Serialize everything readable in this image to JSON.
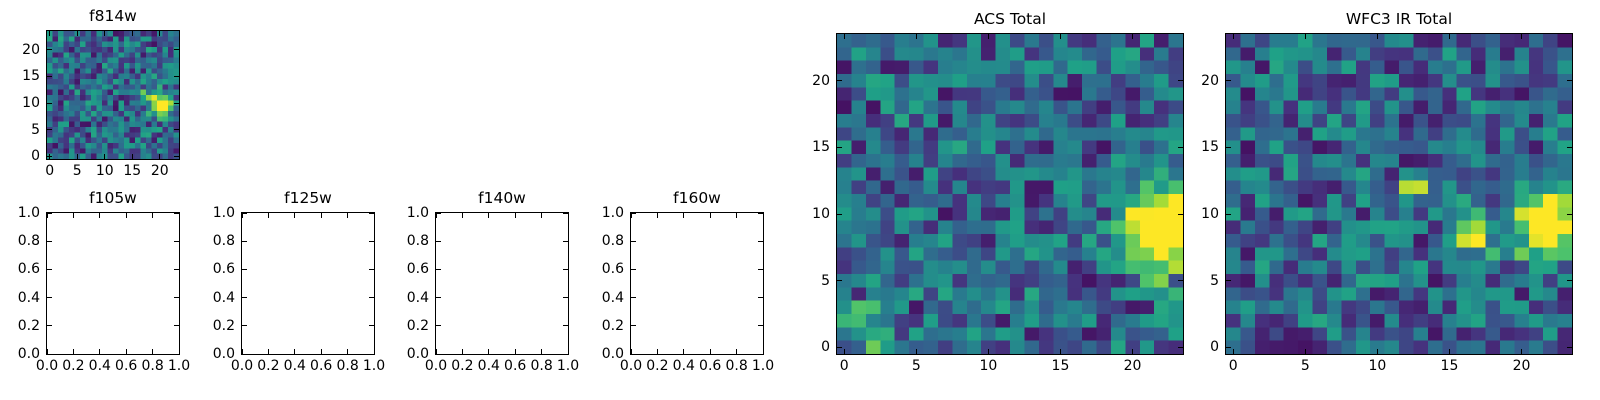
{
  "figure": {
    "background": "#ffffff",
    "text_color": "#000000",
    "description": "Grid of HST cutout stamps: one filled ACS stamp (f814w), four empty WFC3 filter stamps (f105w, f125w, f140w, f160w), and two large stacked stamps (ACS Total, WFC3 IR Total), all rendered with the viridis colormap."
  },
  "chart_data": [
    {
      "id": "f814w",
      "title": "f814w",
      "type": "heatmap",
      "colormap": "viridis",
      "grid": 24,
      "seed": 41,
      "noise": {
        "base": 0.05,
        "amp": 0.55
      },
      "hotspots": [
        {
          "x": 20.3,
          "y": 9.3,
          "sx": 1.1,
          "sy": 1.4,
          "amp": 1.1
        },
        {
          "x": 17.5,
          "y": 11.3,
          "sx": 1.8,
          "sy": 1.0,
          "amp": 0.3
        }
      ],
      "xlim": [
        -0.5,
        23.5
      ],
      "ylim": [
        -0.5,
        23.5
      ],
      "xticks": {
        "values": [
          0,
          5,
          10,
          15,
          20
        ],
        "labels": [
          "0",
          "5",
          "10",
          "15",
          "20"
        ]
      },
      "yticks": {
        "values": [
          0,
          5,
          10,
          15,
          20
        ],
        "labels": [
          "0",
          "5",
          "10",
          "15",
          "20"
        ]
      }
    },
    {
      "id": "f105w",
      "title": "f105w",
      "type": "empty",
      "xlim": [
        0,
        1
      ],
      "ylim": [
        0,
        1
      ],
      "xticks": {
        "values": [
          0,
          0.2,
          0.4,
          0.6,
          0.8,
          1
        ],
        "labels": [
          "0.0",
          "0.2",
          "0.4",
          "0.6",
          "0.8",
          "1.0"
        ]
      },
      "yticks": {
        "values": [
          0,
          0.2,
          0.4,
          0.6,
          0.8,
          1
        ],
        "labels": [
          "0.0",
          "0.2",
          "0.4",
          "0.6",
          "0.8",
          "1.0"
        ]
      }
    },
    {
      "id": "f125w",
      "title": "f125w",
      "type": "empty",
      "xlim": [
        0,
        1
      ],
      "ylim": [
        0,
        1
      ],
      "xticks": {
        "values": [
          0,
          0.2,
          0.4,
          0.6,
          0.8,
          1
        ],
        "labels": [
          "0.0",
          "0.2",
          "0.4",
          "0.6",
          "0.8",
          "1.0"
        ]
      },
      "yticks": {
        "values": [
          0,
          0.2,
          0.4,
          0.6,
          0.8,
          1
        ],
        "labels": [
          "0.0",
          "0.2",
          "0.4",
          "0.6",
          "0.8",
          "1.0"
        ]
      }
    },
    {
      "id": "f140w",
      "title": "f140w",
      "type": "empty",
      "xlim": [
        0,
        1
      ],
      "ylim": [
        0,
        1
      ],
      "xticks": {
        "values": [
          0,
          0.2,
          0.4,
          0.6,
          0.8,
          1
        ],
        "labels": [
          "0.0",
          "0.2",
          "0.4",
          "0.6",
          "0.8",
          "1.0"
        ]
      },
      "yticks": {
        "values": [
          0,
          0.2,
          0.4,
          0.6,
          0.8,
          1
        ],
        "labels": [
          "0.0",
          "0.2",
          "0.4",
          "0.6",
          "0.8",
          "1.0"
        ]
      }
    },
    {
      "id": "f160w",
      "title": "f160w",
      "type": "empty",
      "xlim": [
        0,
        1
      ],
      "ylim": [
        0,
        1
      ],
      "xticks": {
        "values": [
          0,
          0.2,
          0.4,
          0.6,
          0.8,
          1
        ],
        "labels": [
          "0.0",
          "0.2",
          "0.4",
          "0.6",
          "0.8",
          "1.0"
        ]
      },
      "yticks": {
        "values": [
          0,
          0.2,
          0.4,
          0.6,
          0.8,
          1
        ],
        "labels": [
          "0.0",
          "0.2",
          "0.4",
          "0.6",
          "0.8",
          "1.0"
        ]
      }
    },
    {
      "id": "acs",
      "title": "ACS Total",
      "type": "heatmap",
      "colormap": "viridis",
      "grid": 24,
      "seed": 7,
      "noise": {
        "base": 0.05,
        "amp": 0.55
      },
      "hotspots": [
        {
          "x": 21.8,
          "y": 9.0,
          "sx": 1.5,
          "sy": 2.2,
          "amp": 1.15
        },
        {
          "x": 1.0,
          "y": 1.2,
          "sx": 1.8,
          "sy": 1.5,
          "amp": 0.3
        }
      ],
      "xlim": [
        -0.5,
        23.5
      ],
      "ylim": [
        -0.5,
        23.5
      ],
      "xticks": {
        "values": [
          0,
          5,
          10,
          15,
          20
        ],
        "labels": [
          "0",
          "5",
          "10",
          "15",
          "20"
        ]
      },
      "yticks": {
        "values": [
          0,
          5,
          10,
          15,
          20
        ],
        "labels": [
          "0",
          "5",
          "10",
          "15",
          "20"
        ]
      }
    },
    {
      "id": "wfc3",
      "title": "WFC3 IR Total",
      "type": "heatmap",
      "colormap": "viridis",
      "grid": 24,
      "seed": 13,
      "noise": {
        "base": 0.05,
        "amp": 0.55
      },
      "hotspots": [
        {
          "x": 21.6,
          "y": 9.3,
          "sx": 1.4,
          "sy": 1.7,
          "amp": 1.15
        },
        {
          "x": 16.6,
          "y": 8.4,
          "sx": 0.9,
          "sy": 0.9,
          "amp": 1.0
        },
        {
          "x": 12.2,
          "y": 11.9,
          "sx": 0.6,
          "sy": 0.6,
          "amp": 0.9
        }
      ],
      "xlim": [
        -0.5,
        23.5
      ],
      "ylim": [
        -0.5,
        23.5
      ],
      "xticks": {
        "values": [
          0,
          5,
          10,
          15,
          20
        ],
        "labels": [
          "0",
          "5",
          "10",
          "15",
          "20"
        ]
      },
      "yticks": {
        "values": [
          0,
          5,
          10,
          15,
          20
        ],
        "labels": [
          "0",
          "5",
          "10",
          "15",
          "20"
        ]
      }
    }
  ]
}
